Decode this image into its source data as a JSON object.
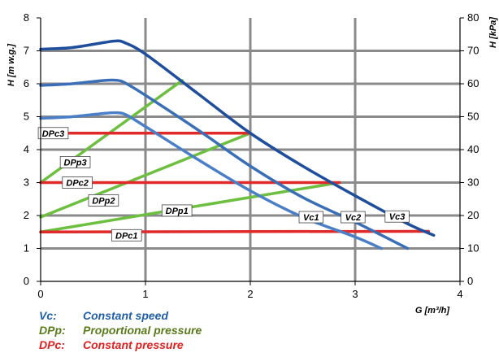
{
  "chart_data": {
    "type": "line",
    "xlabel": "G [m³/h]",
    "ylabel_left": "H [m w.g.]",
    "ylabel_right": "H [kPa]",
    "xlim": [
      0,
      4
    ],
    "ylim_left": [
      0,
      8
    ],
    "ylim_right": [
      0,
      80
    ],
    "x_ticks": [
      "0",
      "1",
      "2",
      "3",
      "4"
    ],
    "y_ticks_left": [
      "0",
      "1",
      "2",
      "3",
      "4",
      "5",
      "6",
      "7",
      "8"
    ],
    "y_ticks_right": [
      "0",
      "10",
      "20",
      "30",
      "40",
      "50",
      "60",
      "70",
      "80"
    ],
    "grid": true,
    "series": [
      {
        "name": "Vc3",
        "group": "constant speed",
        "color": "#1f4e9c",
        "points": [
          [
            0,
            7.05
          ],
          [
            0.3,
            7.1
          ],
          [
            0.6,
            7.25
          ],
          [
            0.72,
            7.3
          ],
          [
            0.8,
            7.25
          ],
          [
            1.0,
            6.9
          ],
          [
            1.5,
            5.7
          ],
          [
            2.0,
            4.5
          ],
          [
            2.5,
            3.5
          ],
          [
            3.0,
            2.6
          ],
          [
            3.5,
            1.75
          ],
          [
            3.75,
            1.4
          ]
        ]
      },
      {
        "name": "Vc2",
        "group": "constant speed",
        "color": "#3a6fb8",
        "points": [
          [
            0,
            5.95
          ],
          [
            0.3,
            6.0
          ],
          [
            0.6,
            6.1
          ],
          [
            0.74,
            6.1
          ],
          [
            0.82,
            6.0
          ],
          [
            1.0,
            5.65
          ],
          [
            1.5,
            4.6
          ],
          [
            2.0,
            3.5
          ],
          [
            2.5,
            2.55
          ],
          [
            3.0,
            1.8
          ],
          [
            3.5,
            1.0
          ]
        ]
      },
      {
        "name": "Vc1",
        "group": "constant speed",
        "color": "#4a7fc8",
        "points": [
          [
            0,
            4.95
          ],
          [
            0.3,
            5.0
          ],
          [
            0.6,
            5.1
          ],
          [
            0.73,
            5.12
          ],
          [
            0.82,
            5.05
          ],
          [
            1.0,
            4.7
          ],
          [
            1.5,
            3.7
          ],
          [
            2.0,
            2.75
          ],
          [
            2.5,
            1.95
          ],
          [
            3.0,
            1.35
          ],
          [
            3.25,
            1.0
          ]
        ]
      },
      {
        "name": "DPp3",
        "group": "proportional pressure",
        "color": "#6cbf3f",
        "points": [
          [
            0,
            3.0
          ],
          [
            1.35,
            6.1
          ]
        ]
      },
      {
        "name": "DPp2",
        "group": "proportional pressure",
        "color": "#6cbf3f",
        "points": [
          [
            0,
            1.95
          ],
          [
            2.0,
            4.5
          ]
        ]
      },
      {
        "name": "DPp1",
        "group": "proportional pressure",
        "color": "#6cbf3f",
        "points": [
          [
            0,
            1.5
          ],
          [
            2.85,
            3.0
          ]
        ]
      },
      {
        "name": "DPc3",
        "group": "constant pressure",
        "color": "#e02a2a",
        "points": [
          [
            0,
            4.5
          ],
          [
            2.0,
            4.5
          ]
        ]
      },
      {
        "name": "DPc2",
        "group": "constant pressure",
        "color": "#e02a2a",
        "points": [
          [
            0,
            3.0
          ],
          [
            2.85,
            3.0
          ]
        ]
      },
      {
        "name": "DPc1",
        "group": "constant pressure",
        "color": "#e02a2a",
        "points": [
          [
            0,
            1.5
          ],
          [
            3.7,
            1.52
          ]
        ]
      }
    ],
    "curve_labels": [
      "DPc3",
      "DPp3",
      "DPc2",
      "DPp2",
      "DPp1",
      "DPc1",
      "Vc1",
      "Vc2",
      "Vc3"
    ]
  },
  "legend": [
    {
      "key": "Vc:",
      "text": "Constant speed",
      "color": "#1f5fa8"
    },
    {
      "key": "DPp:",
      "text": "Proportional pressure",
      "color": "#5a7a1a"
    },
    {
      "key": "DPc:",
      "text": "Constant pressure",
      "color": "#e02020"
    }
  ]
}
